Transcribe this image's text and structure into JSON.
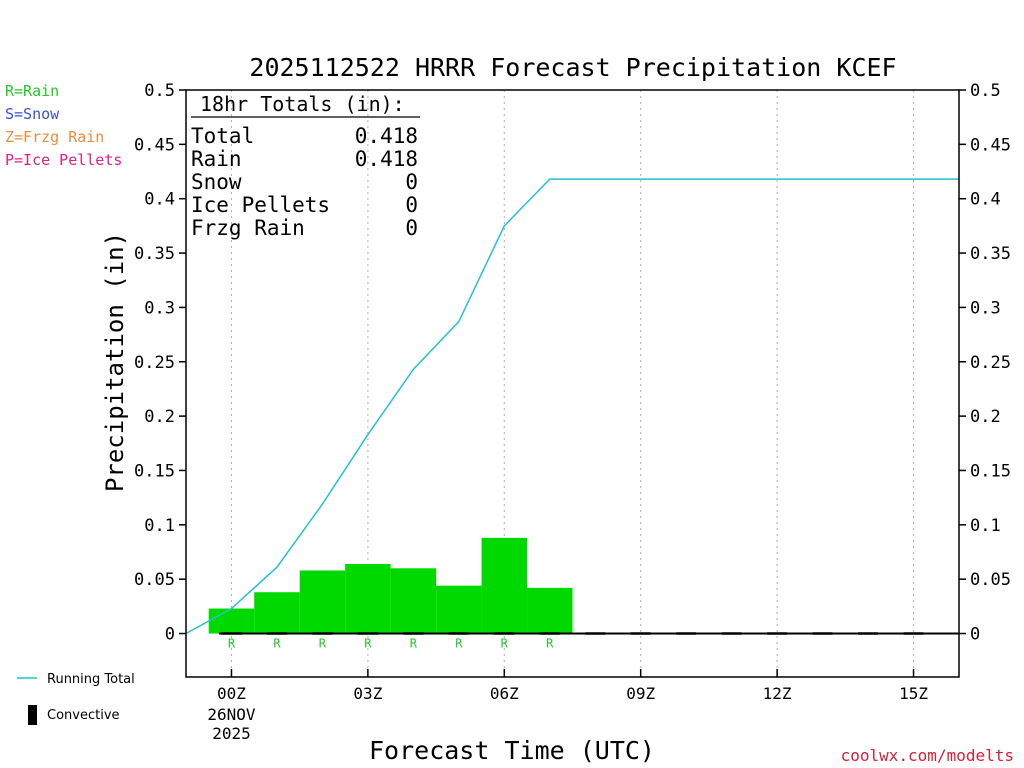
{
  "chart_data": {
    "type": "bar",
    "title": "2025112522 HRRR Forecast Precipitation KCEF",
    "xlabel": "Forecast Time (UTC)",
    "ylabel": "Precipitation (in)",
    "ylim": [
      -0.04,
      0.5
    ],
    "xlim": [
      -1.0,
      16.0
    ],
    "y_ticks": [
      0,
      0.05,
      0.1,
      0.15,
      0.2,
      0.25,
      0.3,
      0.35,
      0.4,
      0.45,
      0.5
    ],
    "y_tick_labels": [
      "0",
      "0.05",
      "0.1",
      "0.15",
      "0.2",
      "0.25",
      "0.3",
      "0.35",
      "0.4",
      "0.45",
      "0.5"
    ],
    "x_ticks": [
      {
        "hour": 0,
        "label": "00Z",
        "sub1": "26NOV",
        "sub2": "2025"
      },
      {
        "hour": 3,
        "label": "03Z",
        "sub1": "",
        "sub2": ""
      },
      {
        "hour": 6,
        "label": "06Z",
        "sub1": "",
        "sub2": ""
      },
      {
        "hour": 9,
        "label": "09Z",
        "sub1": "",
        "sub2": ""
      },
      {
        "hour": 12,
        "label": "12Z",
        "sub1": "",
        "sub2": ""
      },
      {
        "hour": 15,
        "label": "15Z",
        "sub1": "",
        "sub2": ""
      }
    ],
    "grid": "vertical dotted",
    "bars": [
      {
        "start": -0.5,
        "end": 0.5,
        "value": 0.023,
        "ptype": "R"
      },
      {
        "start": 0.5,
        "end": 1.5,
        "value": 0.038,
        "ptype": "R"
      },
      {
        "start": 1.5,
        "end": 2.5,
        "value": 0.058,
        "ptype": "R"
      },
      {
        "start": 2.5,
        "end": 3.5,
        "value": 0.064,
        "ptype": "R"
      },
      {
        "start": 3.5,
        "end": 4.5,
        "value": 0.06,
        "ptype": "R"
      },
      {
        "start": 4.5,
        "end": 5.5,
        "value": 0.044,
        "ptype": "R"
      },
      {
        "start": 5.5,
        "end": 6.5,
        "value": 0.088,
        "ptype": "R"
      },
      {
        "start": 6.5,
        "end": 7.5,
        "value": 0.042,
        "ptype": "R"
      }
    ],
    "convective": [
      {
        "start": -1.0,
        "end": 16.0,
        "value": 0
      }
    ],
    "running_total": {
      "name": "Running Total",
      "x": [
        -1,
        0,
        1,
        2,
        3,
        4,
        5,
        6,
        7,
        16
      ],
      "y": [
        0,
        0.023,
        0.061,
        0.119,
        0.183,
        0.243,
        0.287,
        0.375,
        0.418,
        0.418
      ]
    },
    "bar_color": "#00d900",
    "line_color": "#22c3cf",
    "totals_box": {
      "heading": "18hr Totals (in):",
      "rows": [
        {
          "label": "Total",
          "value": "0.418"
        },
        {
          "label": "Rain",
          "value": "0.418"
        },
        {
          "label": "Snow",
          "value": "0"
        },
        {
          "label": "Ice Pellets",
          "value": "0"
        },
        {
          "label": "Frzg Rain",
          "value": "0"
        }
      ]
    },
    "type_legend": [
      {
        "text": "R=Rain",
        "color": "#22cc22"
      },
      {
        "text": "S=Snow",
        "color": "#3b4fd8"
      },
      {
        "text": "Z=Frzg Rain",
        "color": "#f08c3a"
      },
      {
        "text": "P=Ice Pellets",
        "color": "#e0208a"
      }
    ],
    "series_legend": [
      {
        "text": "Running Total",
        "symbol": "line",
        "color": "#22c3cf"
      },
      {
        "text": "Convective",
        "symbol": "bar",
        "color": "#000000"
      }
    ],
    "credit": "coolwx.com/modelts"
  }
}
